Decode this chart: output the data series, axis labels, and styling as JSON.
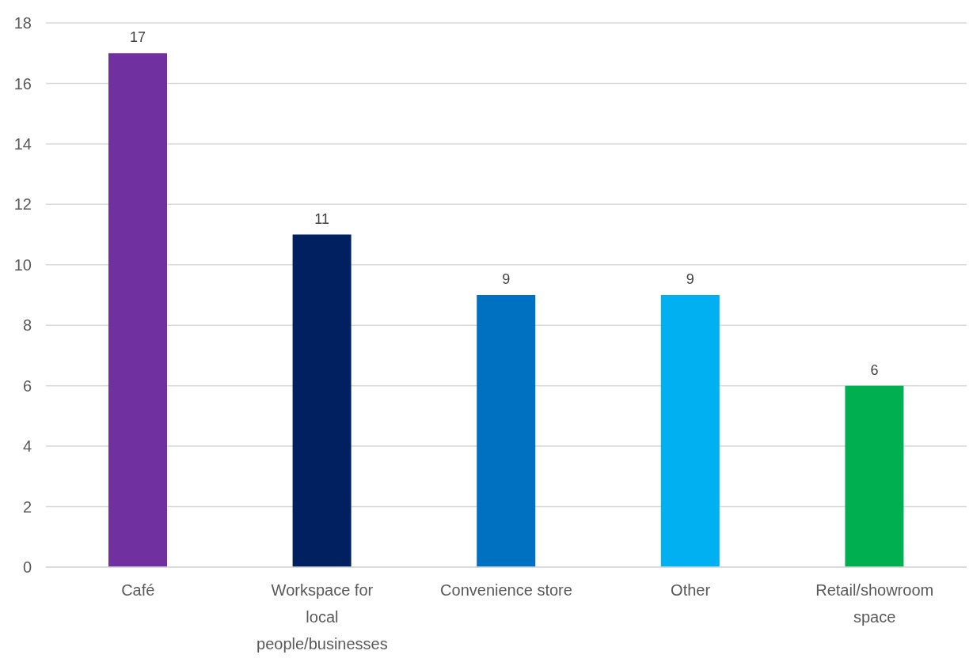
{
  "chart_data": {
    "type": "bar",
    "categories": [
      "Café",
      "Workspace for local people/businesses",
      "Convenience store",
      "Other",
      "Retail/showroom space"
    ],
    "values": [
      17,
      11,
      9,
      9,
      6
    ],
    "colors": [
      "#7030a0",
      "#002060",
      "#0070c0",
      "#00b0f0",
      "#00b050"
    ],
    "ylim": [
      0,
      18
    ],
    "yticks": [
      0,
      2,
      4,
      6,
      8,
      10,
      12,
      14,
      16,
      18
    ],
    "grid": "y",
    "data_labels": true,
    "legend": false
  }
}
